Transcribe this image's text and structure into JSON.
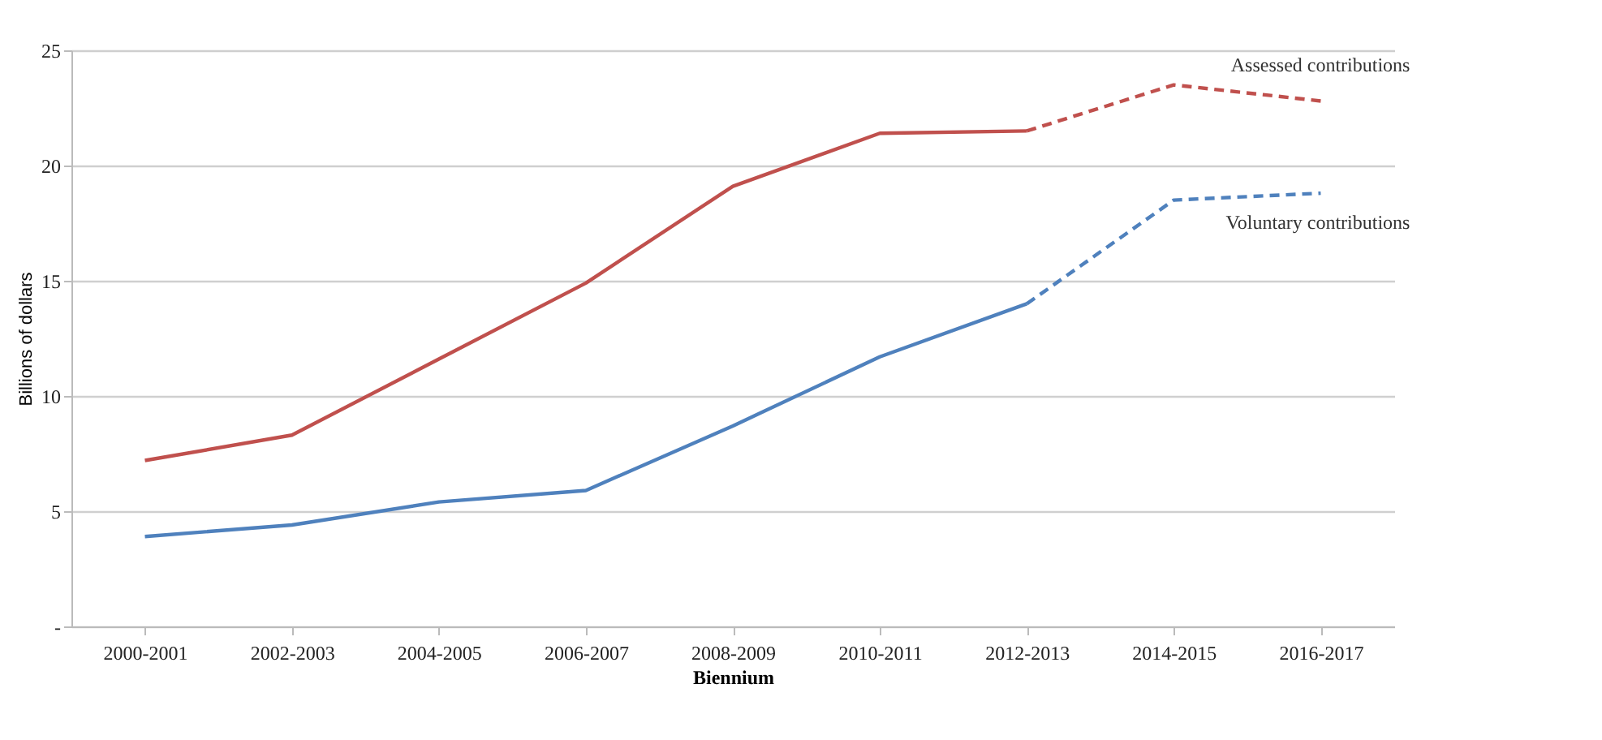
{
  "chart_data": {
    "type": "line",
    "xlabel": "Biennium",
    "ylabel": "Billions of dollars",
    "categories": [
      "2000-2001",
      "2002-2003",
      "2004-2005",
      "2006-2007",
      "2008-2009",
      "2010-2011",
      "2012-2013",
      "2014-2015",
      "2016-2017"
    ],
    "series": [
      {
        "color": "#c0504d",
        "line_style": "solid",
        "values": [
          7.2,
          8.3,
          11.6,
          14.9,
          19.1,
          21.4,
          21.5,
          null,
          null
        ]
      },
      {
        "name": "Assessed  contributions",
        "color": "#c0504d",
        "line_style": "dashed",
        "values": [
          null,
          null,
          null,
          null,
          null,
          null,
          21.5,
          23.5,
          22.8
        ]
      },
      {
        "color": "#4f81bd",
        "line_style": "solid",
        "values": [
          3.9,
          4.4,
          5.4,
          5.9,
          8.7,
          11.7,
          14.0,
          null,
          null
        ]
      },
      {
        "name": "Voluntary contributions",
        "color": "#4f81bd",
        "line_style": "dashed",
        "values": [
          null,
          null,
          null,
          null,
          null,
          null,
          14.0,
          18.5,
          18.8
        ]
      }
    ],
    "ylim": [
      0,
      25
    ],
    "yticks": [
      {
        "value": 0,
        "label": "-"
      },
      5,
      10,
      15,
      20,
      25
    ],
    "grid": "y",
    "marker": "none"
  }
}
